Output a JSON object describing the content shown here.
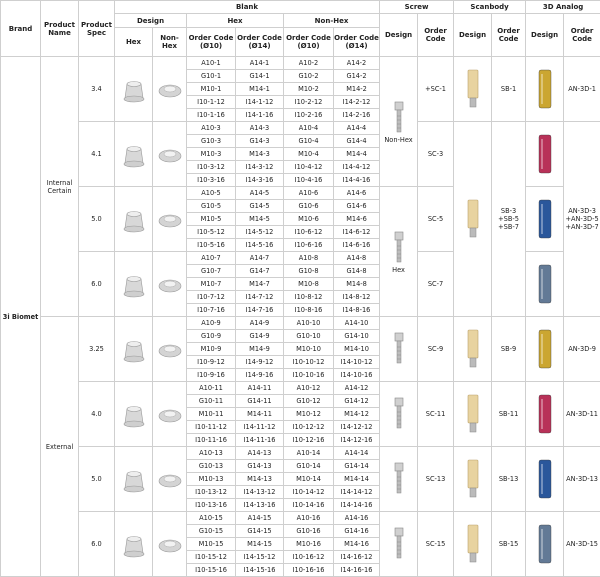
{
  "header": {
    "brand": "Brand",
    "product_name": "Product Name",
    "product_spec": "Product Spec",
    "blank": "Blank",
    "screw": "Screw",
    "scanbody": "Scanbody",
    "analog": "3D Analog",
    "design": "Design",
    "order_code": "Order Code",
    "hex": "Hex",
    "non_hex": "Non-Hex",
    "order_codes": [
      "Order Code (Ø10)",
      "Order Code (Ø14)",
      "Order Code (Ø10)",
      "Order Code (Ø14)"
    ]
  },
  "brand": "3i Biomet",
  "groups": [
    {
      "name": "Internal Certain",
      "screw_design_labels": [
        "Non-Hex",
        "Hex"
      ],
      "scanbody_codes": [
        [
          "SB-1"
        ],
        [
          "SB-3",
          "+SB-5",
          "+SB-7"
        ]
      ],
      "analog_codes": [
        [
          "AN-3D-1"
        ],
        [
          "AN-3D-3",
          "+AN-3D-5",
          "+AN-3D-7"
        ]
      ],
      "specs": [
        {
          "spec": "3.4",
          "screw_code": "+SC-1",
          "analog_color": "#c9a227",
          "codes": [
            [
              "A10-1",
              "A14-1",
              "A10-2",
              "A14-2"
            ],
            [
              "G10-1",
              "G14-1",
              "G10-2",
              "G14-2"
            ],
            [
              "M10-1",
              "M14-1",
              "M10-2",
              "M14-2"
            ],
            [
              "I10-1-12",
              "I14-1-12",
              "I10-2-12",
              "I14-2-12"
            ],
            [
              "I10-1-16",
              "I14-1-16",
              "I10-2-16",
              "I14-2-16"
            ]
          ]
        },
        {
          "spec": "4.1",
          "screw_code": "SC-3",
          "analog_color": "#b52650",
          "codes": [
            [
              "A10-3",
              "A14-3",
              "A10-4",
              "A14-4"
            ],
            [
              "G10-3",
              "G14-3",
              "G10-4",
              "G14-4"
            ],
            [
              "M10-3",
              "M14-3",
              "M10-4",
              "M14-4"
            ],
            [
              "I10-3-12",
              "I14-3-12",
              "I10-4-12",
              "I14-4-12"
            ],
            [
              "I10-3-16",
              "I14-3-16",
              "I10-4-16",
              "I14-4-16"
            ]
          ]
        },
        {
          "spec": "5.0",
          "screw_code": "SC-5",
          "analog_color": "#1f4f96",
          "codes": [
            [
              "A10-5",
              "A14-5",
              "A10-6",
              "A14-6"
            ],
            [
              "G10-5",
              "G14-5",
              "G10-6",
              "G14-6"
            ],
            [
              "M10-5",
              "M14-5",
              "M10-6",
              "M14-6"
            ],
            [
              "I10-5-12",
              "I14-5-12",
              "I10-6-12",
              "I14-6-12"
            ],
            [
              "I10-5-16",
              "I14-5-16",
              "I10-6-16",
              "I14-6-16"
            ]
          ]
        },
        {
          "spec": "6.0",
          "screw_code": "SC-7",
          "analog_color": "#5b7391",
          "codes": [
            [
              "A10-7",
              "A14-7",
              "A10-8",
              "A14-8"
            ],
            [
              "G10-7",
              "G14-7",
              "G10-8",
              "G14-8"
            ],
            [
              "M10-7",
              "M14-7",
              "M10-8",
              "M14-8"
            ],
            [
              "I10-7-12",
              "I14-7-12",
              "I10-8-12",
              "I14-8-12"
            ],
            [
              "I10-7-16",
              "I14-7-16",
              "I10-8-16",
              "I14-8-16"
            ]
          ]
        }
      ]
    },
    {
      "name": "External",
      "scanbody_codes": [
        [
          "SB-9"
        ],
        [
          "SB-11"
        ],
        [
          "SB-13"
        ],
        [
          "SB-15"
        ]
      ],
      "analog_codes": [
        [
          "AN-3D-9"
        ],
        [
          "AN-3D-11"
        ],
        [
          "AN-3D-13"
        ],
        [
          "AN-3D-15"
        ]
      ],
      "specs": [
        {
          "spec": "3.25",
          "screw_code": "SC-9",
          "analog_color": "#c9a227",
          "codes": [
            [
              "A10-9",
              "A14-9",
              "A10-10",
              "A14-10"
            ],
            [
              "G10-9",
              "G14-9",
              "G10-10",
              "G14-10"
            ],
            [
              "M10-9",
              "M14-9",
              "M10-10",
              "M14-10"
            ],
            [
              "I10-9-12",
              "I14-9-12",
              "I10-10-12",
              "I14-10-12"
            ],
            [
              "I10-9-16",
              "I14-9-16",
              "I10-10-16",
              "I14-10-16"
            ]
          ]
        },
        {
          "spec": "4.0",
          "screw_code": "SC-11",
          "analog_color": "#b52650",
          "codes": [
            [
              "A10-11",
              "A14-11",
              "A10-12",
              "A14-12"
            ],
            [
              "G10-11",
              "G14-11",
              "G10-12",
              "G14-12"
            ],
            [
              "M10-11",
              "M14-11",
              "M10-12",
              "M14-12"
            ],
            [
              "I10-11-12",
              "I14-11-12",
              "I10-12-12",
              "I14-12-12"
            ],
            [
              "I10-11-16",
              "I14-11-16",
              "I10-12-16",
              "I14-12-16"
            ]
          ]
        },
        {
          "spec": "5.0",
          "screw_code": "SC-13",
          "analog_color": "#1f4f96",
          "codes": [
            [
              "A10-13",
              "A14-13",
              "A10-14",
              "A14-14"
            ],
            [
              "G10-13",
              "G14-13",
              "G10-14",
              "G14-14"
            ],
            [
              "M10-13",
              "M14-13",
              "M10-14",
              "M14-14"
            ],
            [
              "I10-13-12",
              "I14-13-12",
              "I10-14-12",
              "I14-14-12"
            ],
            [
              "I10-13-16",
              "I14-13-16",
              "I10-14-16",
              "I14-14-16"
            ]
          ]
        },
        {
          "spec": "6.0",
          "screw_code": "SC-15",
          "analog_color": "#5b7391",
          "codes": [
            [
              "A10-15",
              "A14-15",
              "A10-16",
              "A14-16"
            ],
            [
              "G10-15",
              "G14-15",
              "G10-16",
              "G14-16"
            ],
            [
              "M10-15",
              "M14-15",
              "M10-16",
              "M14-16"
            ],
            [
              "I10-15-12",
              "I14-15-12",
              "I10-16-12",
              "I14-16-12"
            ],
            [
              "I10-15-16",
              "I14-15-16",
              "I10-16-16",
              "I14-16-16"
            ]
          ]
        }
      ]
    }
  ]
}
